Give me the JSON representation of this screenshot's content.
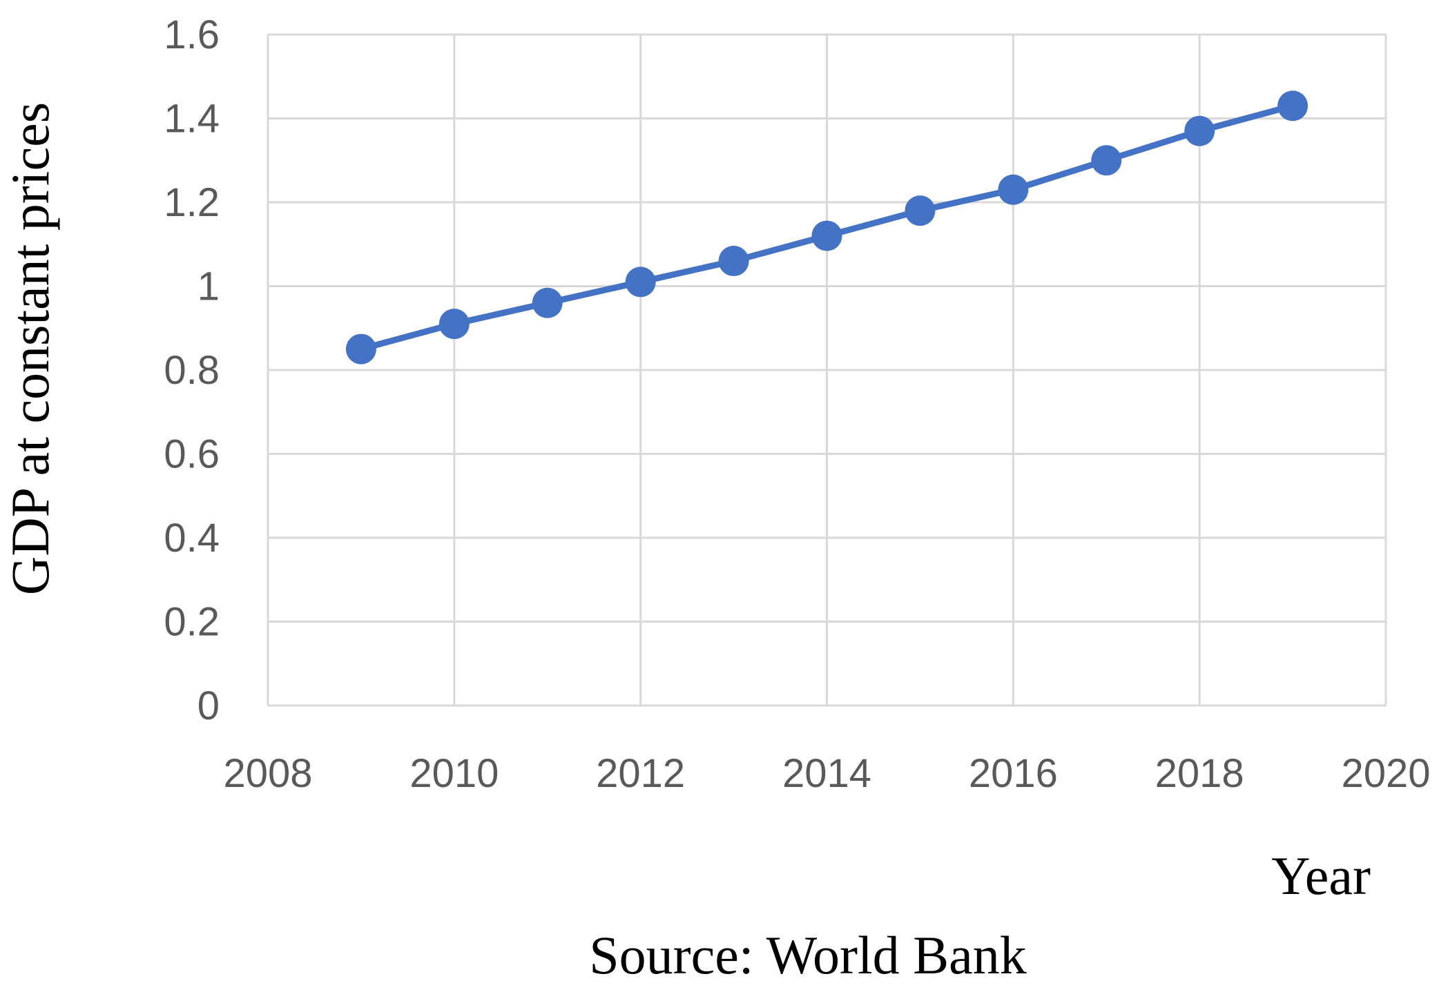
{
  "chart_data": {
    "type": "line",
    "title": "",
    "xlabel": "Year",
    "ylabel": "GDP at constant prices",
    "source": "Source: World Bank",
    "xlim": [
      2008,
      2020
    ],
    "ylim": [
      0,
      1.6
    ],
    "x_ticks": [
      "2008",
      "2010",
      "2012",
      "2014",
      "2016",
      "2018",
      "2020"
    ],
    "y_ticks": [
      "0",
      "0.2",
      "0.4",
      "0.6",
      "0.8",
      "1",
      "1.2",
      "1.4",
      "1.6"
    ],
    "grid": true,
    "legend": "none",
    "series": [
      {
        "color": "#4472c4",
        "x": [
          2009,
          2010,
          2011,
          2012,
          2013,
          2014,
          2015,
          2016,
          2017,
          2018,
          2019
        ],
        "y": [
          0.85,
          0.91,
          0.96,
          1.01,
          1.06,
          1.12,
          1.18,
          1.23,
          1.3,
          1.37,
          1.43
        ]
      }
    ]
  }
}
